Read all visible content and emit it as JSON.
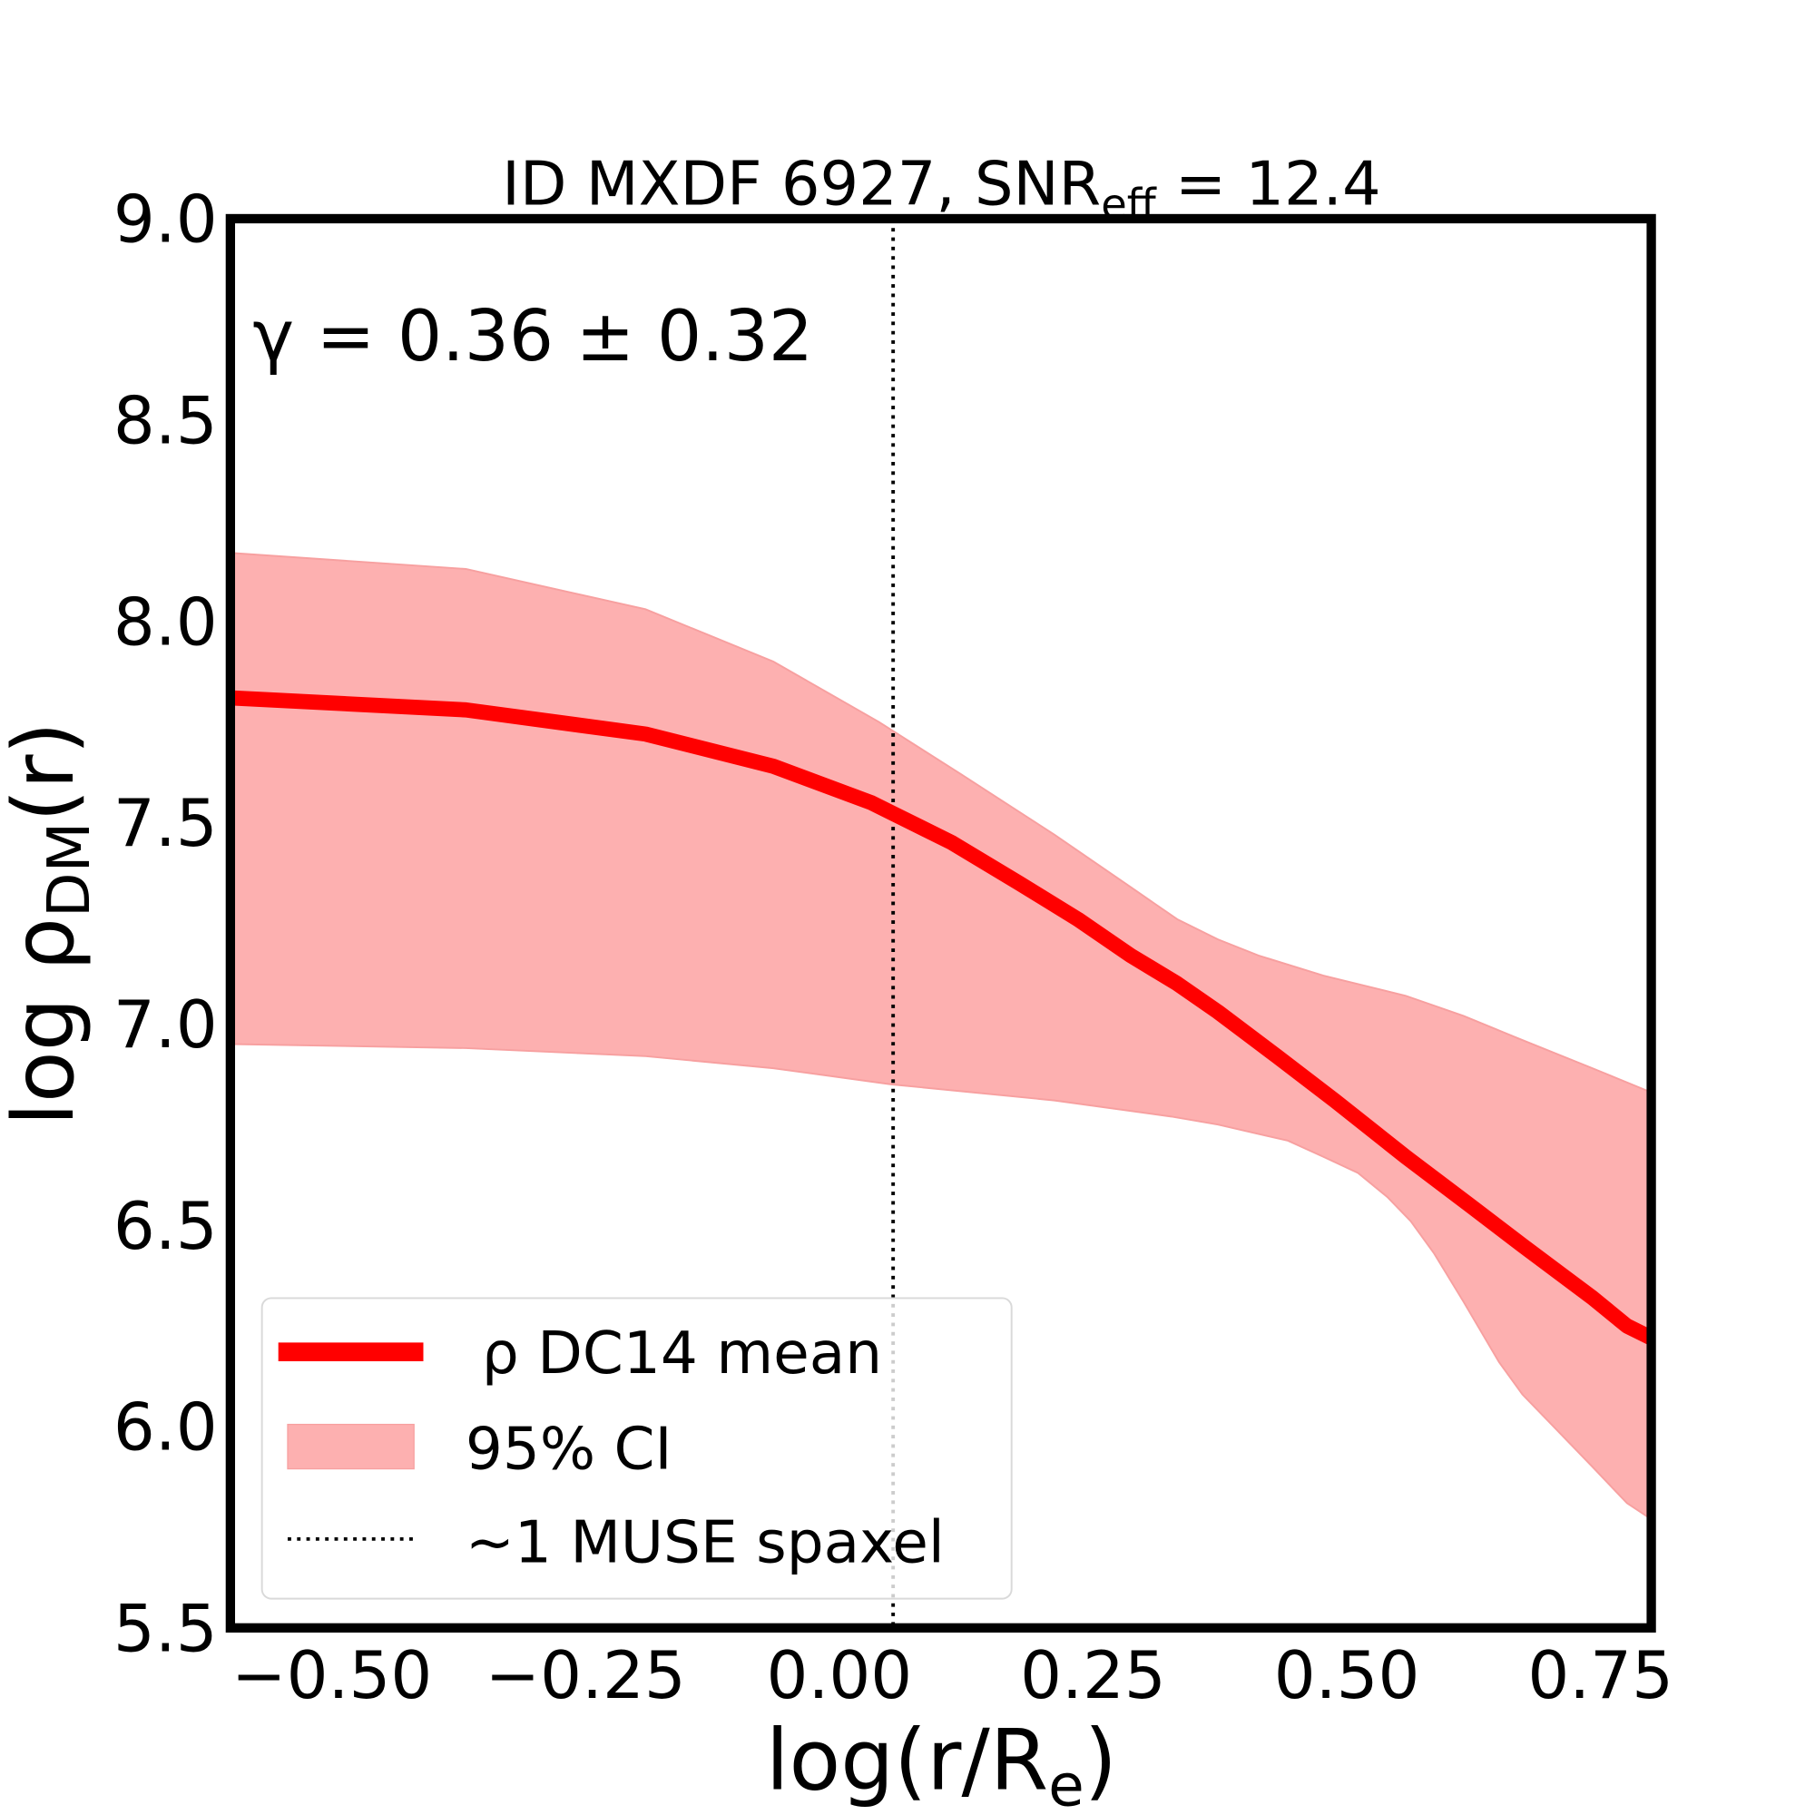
{
  "chart_data": {
    "type": "line",
    "title": "ID MXDF 6927, SNR",
    "title_sub": "eff",
    "title_value": " = 12.4",
    "annotation": "γ = 0.36 ± 0.32",
    "xlabel": {
      "main": "log(r/R",
      "sub": "e",
      "close": ")"
    },
    "ylabel": {
      "main": "log ρ",
      "sub": "DM",
      "tail": "(r)"
    },
    "xlim": [
      -0.6,
      0.8
    ],
    "ylim": [
      5.5,
      9.0
    ],
    "xticks": [
      -0.5,
      -0.25,
      0.0,
      0.25,
      0.5,
      0.75
    ],
    "xtick_labels": [
      "−0.50",
      "−0.25",
      "0.00",
      "0.25",
      "0.50",
      "0.75"
    ],
    "yticks": [
      5.5,
      6.0,
      6.5,
      7.0,
      7.5,
      8.0,
      8.5,
      9.0
    ],
    "ytick_labels": [
      "5.5",
      "6.0",
      "6.5",
      "7.0",
      "7.5",
      "8.0",
      "8.5",
      "9.0"
    ],
    "grid": false,
    "legend_position": "lower-left",
    "series": [
      {
        "name": "ρ DC14 mean",
        "color": "#ff0000",
        "x": [
          -0.6,
          -0.368,
          -0.191,
          -0.065,
          0.031,
          0.111,
          0.177,
          0.235,
          0.287,
          0.333,
          0.373,
          0.431,
          0.488,
          0.558,
          0.621,
          0.673,
          0.742,
          0.776,
          0.8
        ],
        "y": [
          7.81,
          7.78,
          7.72,
          7.64,
          7.55,
          7.45,
          7.35,
          7.26,
          7.17,
          7.1,
          7.03,
          6.92,
          6.81,
          6.67,
          6.55,
          6.45,
          6.32,
          6.25,
          6.22
        ]
      }
    ],
    "band": {
      "name": "95% CI",
      "color": "#fdb0b0",
      "upper": {
        "x": [
          -0.6,
          -0.368,
          -0.191,
          -0.065,
          0.039,
          0.12,
          0.212,
          0.287,
          0.333,
          0.373,
          0.413,
          0.477,
          0.558,
          0.615,
          0.673,
          0.742,
          0.8
        ],
        "y": [
          8.17,
          8.13,
          8.03,
          7.9,
          7.75,
          7.62,
          7.47,
          7.34,
          7.26,
          7.21,
          7.17,
          7.12,
          7.07,
          7.02,
          6.96,
          6.89,
          6.83
        ]
      },
      "lower": {
        "x": [
          -0.6,
          -0.368,
          -0.191,
          -0.065,
          0.051,
          0.212,
          0.327,
          0.373,
          0.442,
          0.477,
          0.511,
          0.54,
          0.563,
          0.586,
          0.615,
          0.65,
          0.673,
          0.696,
          0.742,
          0.776,
          0.8
        ],
        "y": [
          6.95,
          6.94,
          6.92,
          6.89,
          6.85,
          6.81,
          6.77,
          6.75,
          6.71,
          6.67,
          6.63,
          6.57,
          6.51,
          6.43,
          6.31,
          6.16,
          6.08,
          6.02,
          5.9,
          5.81,
          5.77
        ]
      }
    },
    "vline": {
      "name": "~1 MUSE spaxel",
      "x": 0.053,
      "style": "dotted",
      "color": "#000000"
    },
    "legend": [
      "ρ DC14 mean",
      "95% CI",
      "~1 MUSE spaxel"
    ]
  }
}
